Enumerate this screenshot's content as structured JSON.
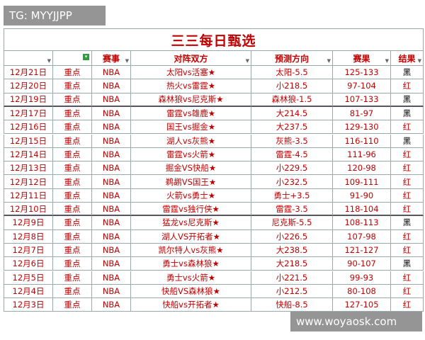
{
  "watermarks": {
    "top": "TG: MYYJJPP",
    "bottom": "www.woyaosk.com"
  },
  "table": {
    "title": "三三每日甄选",
    "headers": [
      "赛事",
      "对阵双方",
      "预测方向",
      "赛果",
      "结果"
    ],
    "rows": [
      [
        "12月21日",
        "重点",
        "NBA",
        "太阳vs活塞★",
        "太阳-5.5",
        "125-133",
        "黑"
      ],
      [
        "12月20日",
        "重点",
        "NBA",
        "热火vs雷霆★",
        "小218.5",
        "97-104",
        "红"
      ],
      [
        "12月19日",
        "重点",
        "NBA",
        "森林狼vs尼克斯★",
        "森林狼-1.5",
        "107-133",
        "黑"
      ],
      [
        "12月17日",
        "重点",
        "NBA",
        "雷霆vs雄鹿★",
        "大214.5",
        "81-97",
        "黑"
      ],
      [
        "12月16日",
        "重点",
        "NBA",
        "国王vs掘金★",
        "大237.5",
        "129-130",
        "红"
      ],
      [
        "12月15日",
        "重点",
        "NBA",
        "湖人vs灰熊★",
        "灰熊-3.5",
        "116-110",
        "黑"
      ],
      [
        "12月14日",
        "重点",
        "NBA",
        "雷霆vs火箭★",
        "雷霆-4.5",
        "111-96",
        "红"
      ],
      [
        "12月13日",
        "重点",
        "NBA",
        "掘金VS快船★",
        "小229.5",
        "120-98",
        "红"
      ],
      [
        "12月12日",
        "重点",
        "NBA",
        "鹈鹕VS国王★",
        "小232.5",
        "109-111",
        "红"
      ],
      [
        "12月11日",
        "重点",
        "NBA",
        "火箭vs勇士★",
        "勇士+3.5",
        "91-90",
        "红"
      ],
      [
        "12月10日",
        "重点",
        "NBA",
        "雷霆vs独行侠★",
        "雷霆-3.5",
        "118-104",
        "红"
      ],
      [
        "12月9日",
        "重点",
        "NBA",
        "猛龙vs尼克斯★",
        "尼克斯-5.5",
        "108-113",
        "黑"
      ],
      [
        "12月8日",
        "重点",
        "NBA",
        "湖人VS开拓者★",
        "小226.5",
        "107-98",
        "红"
      ],
      [
        "12月7日",
        "重点",
        "NBA",
        "凯尔特人vs灰熊★",
        "大238.5",
        "121-127",
        "红"
      ],
      [
        "12月6日",
        "重点",
        "NBA",
        "勇士vs森林狼★",
        "大218.5",
        "90-107",
        "黑"
      ],
      [
        "12月5日",
        "重点",
        "NBA",
        "勇士vs火箭★",
        "小221.5",
        "99-93",
        "红"
      ],
      [
        "12月4日",
        "重点",
        "NBA",
        "快船VS森林狼★",
        "小212.5",
        "80-108",
        "红"
      ],
      [
        "12月3日",
        "重点",
        "NBA",
        "快船vs开拓者★",
        "快船-8.5",
        "127-105",
        "红"
      ]
    ]
  }
}
